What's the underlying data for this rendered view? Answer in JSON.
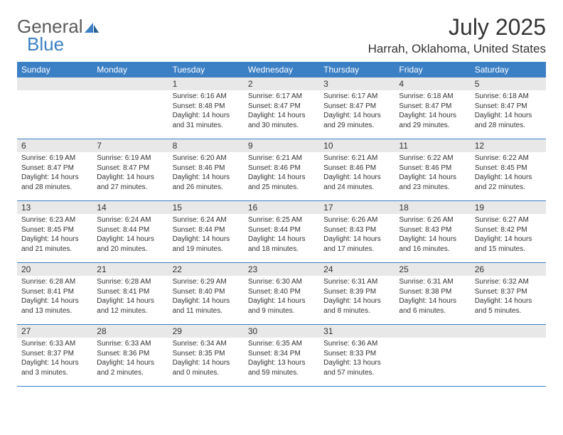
{
  "logo": {
    "text1": "General",
    "text2": "Blue",
    "color1": "#5a5a5a",
    "color2": "#3b7fc4",
    "icon_color": "#3b7fc4"
  },
  "title": "July 2025",
  "location": "Harrah, Oklahoma, United States",
  "header_bg": "#3b7fc4",
  "header_fg": "#ffffff",
  "daynum_bg": "#e8e8e8",
  "border_color": "#3b7fc4",
  "text_color": "#333333",
  "background": "#ffffff",
  "font_size_title": 32,
  "font_size_location": 17,
  "font_size_dayheader": 12,
  "font_size_daynum": 12,
  "font_size_info": 10,
  "day_headers": [
    "Sunday",
    "Monday",
    "Tuesday",
    "Wednesday",
    "Thursday",
    "Friday",
    "Saturday"
  ],
  "weeks": [
    [
      {
        "num": "",
        "sunrise": "",
        "sunset": "",
        "daylight": ""
      },
      {
        "num": "",
        "sunrise": "",
        "sunset": "",
        "daylight": ""
      },
      {
        "num": "1",
        "sunrise": "Sunrise: 6:16 AM",
        "sunset": "Sunset: 8:48 PM",
        "daylight": "Daylight: 14 hours and 31 minutes."
      },
      {
        "num": "2",
        "sunrise": "Sunrise: 6:17 AM",
        "sunset": "Sunset: 8:47 PM",
        "daylight": "Daylight: 14 hours and 30 minutes."
      },
      {
        "num": "3",
        "sunrise": "Sunrise: 6:17 AM",
        "sunset": "Sunset: 8:47 PM",
        "daylight": "Daylight: 14 hours and 29 minutes."
      },
      {
        "num": "4",
        "sunrise": "Sunrise: 6:18 AM",
        "sunset": "Sunset: 8:47 PM",
        "daylight": "Daylight: 14 hours and 29 minutes."
      },
      {
        "num": "5",
        "sunrise": "Sunrise: 6:18 AM",
        "sunset": "Sunset: 8:47 PM",
        "daylight": "Daylight: 14 hours and 28 minutes."
      }
    ],
    [
      {
        "num": "6",
        "sunrise": "Sunrise: 6:19 AM",
        "sunset": "Sunset: 8:47 PM",
        "daylight": "Daylight: 14 hours and 28 minutes."
      },
      {
        "num": "7",
        "sunrise": "Sunrise: 6:19 AM",
        "sunset": "Sunset: 8:47 PM",
        "daylight": "Daylight: 14 hours and 27 minutes."
      },
      {
        "num": "8",
        "sunrise": "Sunrise: 6:20 AM",
        "sunset": "Sunset: 8:46 PM",
        "daylight": "Daylight: 14 hours and 26 minutes."
      },
      {
        "num": "9",
        "sunrise": "Sunrise: 6:21 AM",
        "sunset": "Sunset: 8:46 PM",
        "daylight": "Daylight: 14 hours and 25 minutes."
      },
      {
        "num": "10",
        "sunrise": "Sunrise: 6:21 AM",
        "sunset": "Sunset: 8:46 PM",
        "daylight": "Daylight: 14 hours and 24 minutes."
      },
      {
        "num": "11",
        "sunrise": "Sunrise: 6:22 AM",
        "sunset": "Sunset: 8:46 PM",
        "daylight": "Daylight: 14 hours and 23 minutes."
      },
      {
        "num": "12",
        "sunrise": "Sunrise: 6:22 AM",
        "sunset": "Sunset: 8:45 PM",
        "daylight": "Daylight: 14 hours and 22 minutes."
      }
    ],
    [
      {
        "num": "13",
        "sunrise": "Sunrise: 6:23 AM",
        "sunset": "Sunset: 8:45 PM",
        "daylight": "Daylight: 14 hours and 21 minutes."
      },
      {
        "num": "14",
        "sunrise": "Sunrise: 6:24 AM",
        "sunset": "Sunset: 8:44 PM",
        "daylight": "Daylight: 14 hours and 20 minutes."
      },
      {
        "num": "15",
        "sunrise": "Sunrise: 6:24 AM",
        "sunset": "Sunset: 8:44 PM",
        "daylight": "Daylight: 14 hours and 19 minutes."
      },
      {
        "num": "16",
        "sunrise": "Sunrise: 6:25 AM",
        "sunset": "Sunset: 8:44 PM",
        "daylight": "Daylight: 14 hours and 18 minutes."
      },
      {
        "num": "17",
        "sunrise": "Sunrise: 6:26 AM",
        "sunset": "Sunset: 8:43 PM",
        "daylight": "Daylight: 14 hours and 17 minutes."
      },
      {
        "num": "18",
        "sunrise": "Sunrise: 6:26 AM",
        "sunset": "Sunset: 8:43 PM",
        "daylight": "Daylight: 14 hours and 16 minutes."
      },
      {
        "num": "19",
        "sunrise": "Sunrise: 6:27 AM",
        "sunset": "Sunset: 8:42 PM",
        "daylight": "Daylight: 14 hours and 15 minutes."
      }
    ],
    [
      {
        "num": "20",
        "sunrise": "Sunrise: 6:28 AM",
        "sunset": "Sunset: 8:41 PM",
        "daylight": "Daylight: 14 hours and 13 minutes."
      },
      {
        "num": "21",
        "sunrise": "Sunrise: 6:28 AM",
        "sunset": "Sunset: 8:41 PM",
        "daylight": "Daylight: 14 hours and 12 minutes."
      },
      {
        "num": "22",
        "sunrise": "Sunrise: 6:29 AM",
        "sunset": "Sunset: 8:40 PM",
        "daylight": "Daylight: 14 hours and 11 minutes."
      },
      {
        "num": "23",
        "sunrise": "Sunrise: 6:30 AM",
        "sunset": "Sunset: 8:40 PM",
        "daylight": "Daylight: 14 hours and 9 minutes."
      },
      {
        "num": "24",
        "sunrise": "Sunrise: 6:31 AM",
        "sunset": "Sunset: 8:39 PM",
        "daylight": "Daylight: 14 hours and 8 minutes."
      },
      {
        "num": "25",
        "sunrise": "Sunrise: 6:31 AM",
        "sunset": "Sunset: 8:38 PM",
        "daylight": "Daylight: 14 hours and 6 minutes."
      },
      {
        "num": "26",
        "sunrise": "Sunrise: 6:32 AM",
        "sunset": "Sunset: 8:37 PM",
        "daylight": "Daylight: 14 hours and 5 minutes."
      }
    ],
    [
      {
        "num": "27",
        "sunrise": "Sunrise: 6:33 AM",
        "sunset": "Sunset: 8:37 PM",
        "daylight": "Daylight: 14 hours and 3 minutes."
      },
      {
        "num": "28",
        "sunrise": "Sunrise: 6:33 AM",
        "sunset": "Sunset: 8:36 PM",
        "daylight": "Daylight: 14 hours and 2 minutes."
      },
      {
        "num": "29",
        "sunrise": "Sunrise: 6:34 AM",
        "sunset": "Sunset: 8:35 PM",
        "daylight": "Daylight: 14 hours and 0 minutes."
      },
      {
        "num": "30",
        "sunrise": "Sunrise: 6:35 AM",
        "sunset": "Sunset: 8:34 PM",
        "daylight": "Daylight: 13 hours and 59 minutes."
      },
      {
        "num": "31",
        "sunrise": "Sunrise: 6:36 AM",
        "sunset": "Sunset: 8:33 PM",
        "daylight": "Daylight: 13 hours and 57 minutes."
      },
      {
        "num": "",
        "sunrise": "",
        "sunset": "",
        "daylight": ""
      },
      {
        "num": "",
        "sunrise": "",
        "sunset": "",
        "daylight": ""
      }
    ]
  ]
}
